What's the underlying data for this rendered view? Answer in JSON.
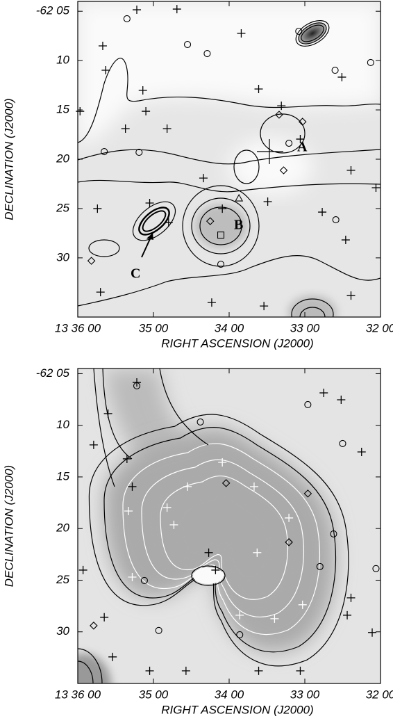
{
  "chart_data": [
    {
      "type": "scatter",
      "xlabel": "RIGHT ASCENSION (J2000)",
      "ylabel": "DECLINATION (J2000)",
      "xlim": [
        36,
        32
      ],
      "ylim": [
        4,
        36
      ],
      "xticks": [
        {
          "value": 36,
          "label": "13 36 00"
        },
        {
          "value": 35,
          "label": "35 00"
        },
        {
          "value": 34,
          "label": "34 00"
        },
        {
          "value": 33,
          "label": "33 00"
        },
        {
          "value": 32,
          "label": "32 00"
        }
      ],
      "yticks": [
        {
          "value": 5,
          "label": "-62 05"
        },
        10,
        15,
        20,
        25,
        30
      ],
      "annotations": [
        "A",
        "B",
        "C"
      ],
      "series": [
        {
          "marker": "plus",
          "color": "#000000",
          "x": [
            35.22,
            34.69,
            33.84,
            35.67,
            35.63,
            35.14,
            33.61,
            32.51,
            35.97,
            35.1,
            33.31,
            35.37,
            34.82,
            33.06,
            34.34,
            32.39,
            32.06,
            35.05,
            34.09,
            33.49,
            35.74,
            32.77,
            34.8,
            32.46,
            35.7,
            34.23,
            32.39,
            33.54
          ],
          "y": [
            4.85,
            4.78,
            7.24,
            8.51,
            10.98,
            13.02,
            12.88,
            11.68,
            15.14,
            15.14,
            14.58,
            16.9,
            16.9,
            17.96,
            21.91,
            21.13,
            22.89,
            24.44,
            25.01,
            24.3,
            25.01,
            25.36,
            26.42,
            28.18,
            33.47,
            34.53,
            33.82,
            34.88
          ]
        },
        {
          "marker": "circle",
          "color": "#000000",
          "x": [
            35.35,
            33.08,
            34.55,
            34.29,
            32.6,
            32.13,
            35.19,
            33.21,
            32.59,
            34.11,
            35.65
          ],
          "y": [
            5.76,
            7.03,
            8.37,
            9.29,
            10.98,
            10.2,
            19.3,
            18.38,
            26.14,
            30.65,
            19.23
          ]
        },
        {
          "marker": "diamond",
          "color": "#000000",
          "x": [
            33.34,
            33.03,
            33.28,
            35.82,
            34.25
          ],
          "y": [
            15.49,
            16.2,
            21.13,
            30.3,
            26.28
          ]
        },
        {
          "marker": "triangle",
          "color": "#000000",
          "x": [
            33.87
          ],
          "y": [
            23.95
          ]
        },
        {
          "marker": "square",
          "color": "#000000",
          "x": [
            34.11
          ],
          "y": [
            27.69
          ]
        }
      ]
    },
    {
      "type": "scatter",
      "xlabel": "RIGHT ASCENSION (J2000)",
      "ylabel": "DECLINATION (J2000)",
      "xlim": [
        36,
        32
      ],
      "ylim": [
        4.5,
        35
      ],
      "xticks": [
        {
          "value": 36,
          "label": "13 36 00"
        },
        {
          "value": 35,
          "label": "35 00"
        },
        {
          "value": 34,
          "label": "34 00"
        },
        {
          "value": 33,
          "label": "33 00"
        },
        {
          "value": 32,
          "label": "32 00"
        }
      ],
      "yticks": [
        {
          "value": 5,
          "label": "-62 05"
        },
        10,
        15,
        20,
        25,
        30
      ],
      "series": [
        {
          "marker": "plus",
          "color": "#000000",
          "x": [
            35.22,
            35.6,
            35.35,
            35.79,
            35.28,
            32.52,
            32.25,
            32.75,
            34.27,
            34.18,
            35.93,
            35.65,
            35.54,
            35.05,
            34.57,
            33.61,
            33.06,
            32.44,
            32.11,
            32.39
          ],
          "y": [
            5.85,
            8.87,
            13.25,
            11.9,
            15.94,
            7.53,
            12.58,
            6.86,
            22.33,
            24.02,
            24.02,
            28.59,
            32.43,
            33.78,
            33.78,
            33.78,
            33.78,
            28.39,
            30.07,
            26.71
          ]
        },
        {
          "marker": "plus",
          "color": "#ffffff",
          "x": [
            34.09,
            34.55,
            34.82,
            33.67,
            33.21,
            35.33,
            35.28,
            33.63,
            33.03,
            33.86,
            33.4,
            34.73
          ],
          "y": [
            13.59,
            15.94,
            17.97,
            15.94,
            18.97,
            18.3,
            24.7,
            22.33,
            27.38,
            28.39,
            28.73,
            19.64
          ]
        },
        {
          "marker": "circle",
          "color": "#000000",
          "x": [
            35.22,
            34.38,
            32.96,
            32.5,
            32.8,
            32.62,
            32.06,
            33.86,
            34.93,
            35.12
          ],
          "y": [
            6.18,
            9.68,
            8.0,
            11.77,
            23.68,
            20.52,
            23.88,
            30.28,
            29.87,
            25.03
          ]
        },
        {
          "marker": "diamond",
          "color": "#000000",
          "x": [
            34.04,
            32.96,
            33.21,
            35.79
          ],
          "y": [
            15.6,
            16.61,
            21.32,
            29.4
          ]
        }
      ]
    }
  ]
}
